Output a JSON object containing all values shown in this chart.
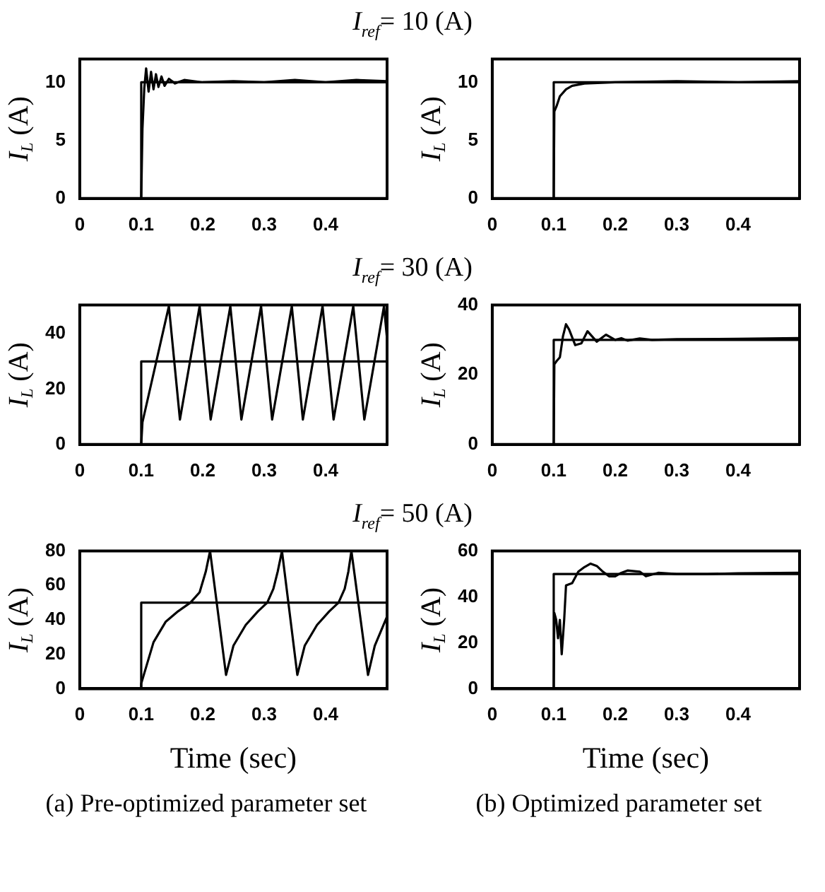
{
  "chart_data": [
    {
      "type": "line",
      "title": "I$_{ref}$= 10 (A)",
      "ylabel": "I$_{L}$ (A)",
      "xlim": [
        0,
        0.5
      ],
      "xticks": [
        0,
        0.1,
        0.2,
        0.3,
        0.4
      ],
      "ylim": [
        0,
        12
      ],
      "yticks": [
        0,
        5,
        10
      ],
      "series": [
        {
          "color": "#000000",
          "x": [
            0,
            0.1,
            0.1,
            0.5
          ],
          "values": [
            0,
            0,
            10,
            10
          ]
        },
        {
          "color": "#000000",
          "x": [
            0,
            0.1,
            0.102,
            0.105,
            0.108,
            0.112,
            0.116,
            0.12,
            0.124,
            0.128,
            0.133,
            0.138,
            0.145,
            0.155,
            0.17,
            0.2,
            0.25,
            0.3,
            0.35,
            0.4,
            0.45,
            0.5
          ],
          "values": [
            0,
            0,
            6,
            9.5,
            11.2,
            9.2,
            10.9,
            9.4,
            10.7,
            9.6,
            10.5,
            9.7,
            10.3,
            9.9,
            10.2,
            10,
            10.1,
            10,
            10.2,
            10,
            10.2,
            10.1
          ]
        }
      ]
    },
    {
      "type": "line",
      "ylabel": "I$_{L}$ (A)",
      "xlim": [
        0,
        0.5
      ],
      "xticks": [
        0,
        0.1,
        0.2,
        0.3,
        0.4
      ],
      "ylim": [
        0,
        12
      ],
      "yticks": [
        0,
        5,
        10
      ],
      "series": [
        {
          "color": "#000000",
          "x": [
            0,
            0.1,
            0.1,
            0.5
          ],
          "values": [
            0,
            0,
            10,
            10
          ]
        },
        {
          "color": "#000000",
          "x": [
            0,
            0.1,
            0.101,
            0.105,
            0.11,
            0.12,
            0.13,
            0.15,
            0.2,
            0.3,
            0.4,
            0.5
          ],
          "values": [
            0,
            0,
            7.5,
            8,
            8.8,
            9.4,
            9.7,
            9.9,
            10,
            10.1,
            10,
            10.1
          ]
        }
      ]
    },
    {
      "type": "line",
      "title": "I$_{ref}$= 30 (A)",
      "ylabel": "I$_{L}$ (A)",
      "xlim": [
        0,
        0.5
      ],
      "xticks": [
        0,
        0.1,
        0.2,
        0.3,
        0.4
      ],
      "ylim": [
        0,
        50.4
      ],
      "yticks": [
        0,
        20,
        40
      ],
      "series": [
        {
          "color": "#000000",
          "x": [
            0,
            0.1,
            0.1,
            0.5
          ],
          "values": [
            0,
            0,
            30,
            30
          ]
        },
        {
          "color": "#000000",
          "x": [
            0,
            0.1,
            0.102,
            0.145,
            0.163,
            0.195,
            0.213,
            0.245,
            0.263,
            0.295,
            0.313,
            0.345,
            0.363,
            0.395,
            0.413,
            0.445,
            0.463,
            0.495,
            0.5
          ],
          "values": [
            0,
            0,
            8,
            50,
            9,
            50,
            9,
            50,
            9,
            50,
            9,
            50,
            9,
            50,
            9,
            50,
            9,
            50,
            38
          ]
        }
      ]
    },
    {
      "type": "line",
      "ylabel": "I$_{L}$ (A)",
      "xlim": [
        0,
        0.5
      ],
      "xticks": [
        0,
        0.1,
        0.2,
        0.3,
        0.4
      ],
      "ylim": [
        0,
        40
      ],
      "yticks": [
        0,
        20,
        40
      ],
      "series": [
        {
          "color": "#000000",
          "x": [
            0,
            0.1,
            0.1,
            0.5
          ],
          "values": [
            0,
            0,
            30,
            30
          ]
        },
        {
          "color": "#000000",
          "x": [
            0,
            0.1,
            0.101,
            0.105,
            0.11,
            0.115,
            0.12,
            0.125,
            0.135,
            0.145,
            0.155,
            0.17,
            0.185,
            0.2,
            0.21,
            0.22,
            0.24,
            0.26,
            0.3,
            0.4,
            0.5
          ],
          "values": [
            0,
            0,
            23,
            24,
            25,
            31,
            34.5,
            33,
            28.5,
            29,
            32.5,
            29.5,
            31.5,
            30,
            30.5,
            29.8,
            30.4,
            30,
            30.2,
            30.3,
            30.5
          ]
        }
      ]
    },
    {
      "type": "line",
      "title": "I$_{ref}$= 50 (A)",
      "ylabel": "I$_{L}$ (A)",
      "xlabel": "Time (sec)",
      "annotations": [
        "(a) Pre-optimized parameter set"
      ],
      "xlim": [
        0,
        0.5
      ],
      "xticks": [
        0,
        0.1,
        0.2,
        0.3,
        0.4
      ],
      "ylim": [
        0,
        80
      ],
      "yticks": [
        0,
        20,
        40,
        60,
        80
      ],
      "series": [
        {
          "color": "#000000",
          "x": [
            0,
            0.1,
            0.1,
            0.5
          ],
          "values": [
            0,
            0,
            50,
            50
          ]
        },
        {
          "color": "#000000",
          "x": [
            0,
            0.1,
            0.1,
            0.12,
            0.14,
            0.16,
            0.18,
            0.195,
            0.205,
            0.212,
            0.238,
            0.25,
            0.27,
            0.29,
            0.305,
            0.315,
            0.322,
            0.329,
            0.354,
            0.366,
            0.386,
            0.406,
            0.421,
            0.431,
            0.437,
            0.442,
            0.469,
            0.48,
            0.5
          ],
          "values": [
            0,
            0,
            3,
            27,
            39,
            45,
            50,
            56,
            68,
            80,
            8,
            25,
            37,
            45,
            50,
            58,
            68,
            80,
            8,
            25,
            37,
            45,
            50,
            58,
            68,
            80,
            8,
            25,
            42
          ]
        }
      ]
    },
    {
      "type": "line",
      "ylabel": "I$_{L}$ (A)",
      "xlabel": "Time (sec)",
      "annotations": [
        "(b) Optimized parameter set"
      ],
      "xlim": [
        0,
        0.5
      ],
      "xticks": [
        0,
        0.1,
        0.2,
        0.3,
        0.4
      ],
      "ylim": [
        0,
        60
      ],
      "yticks": [
        0,
        20,
        40,
        60
      ],
      "series": [
        {
          "color": "#000000",
          "x": [
            0,
            0.1,
            0.1,
            0.5
          ],
          "values": [
            0,
            0,
            50,
            50
          ]
        },
        {
          "color": "#000000",
          "x": [
            0,
            0.1,
            0.101,
            0.104,
            0.107,
            0.11,
            0.113,
            0.117,
            0.12,
            0.13,
            0.14,
            0.15,
            0.16,
            0.17,
            0.18,
            0.19,
            0.2,
            0.21,
            0.22,
            0.24,
            0.25,
            0.27,
            0.3,
            0.35,
            0.4,
            0.5
          ],
          "values": [
            0,
            0,
            33,
            30,
            22,
            30,
            15,
            30,
            45,
            46,
            51,
            53,
            54.5,
            53.5,
            51,
            49,
            49,
            50.5,
            51.5,
            51,
            49,
            50.5,
            50,
            50,
            50.3,
            50.5
          ]
        }
      ]
    }
  ]
}
